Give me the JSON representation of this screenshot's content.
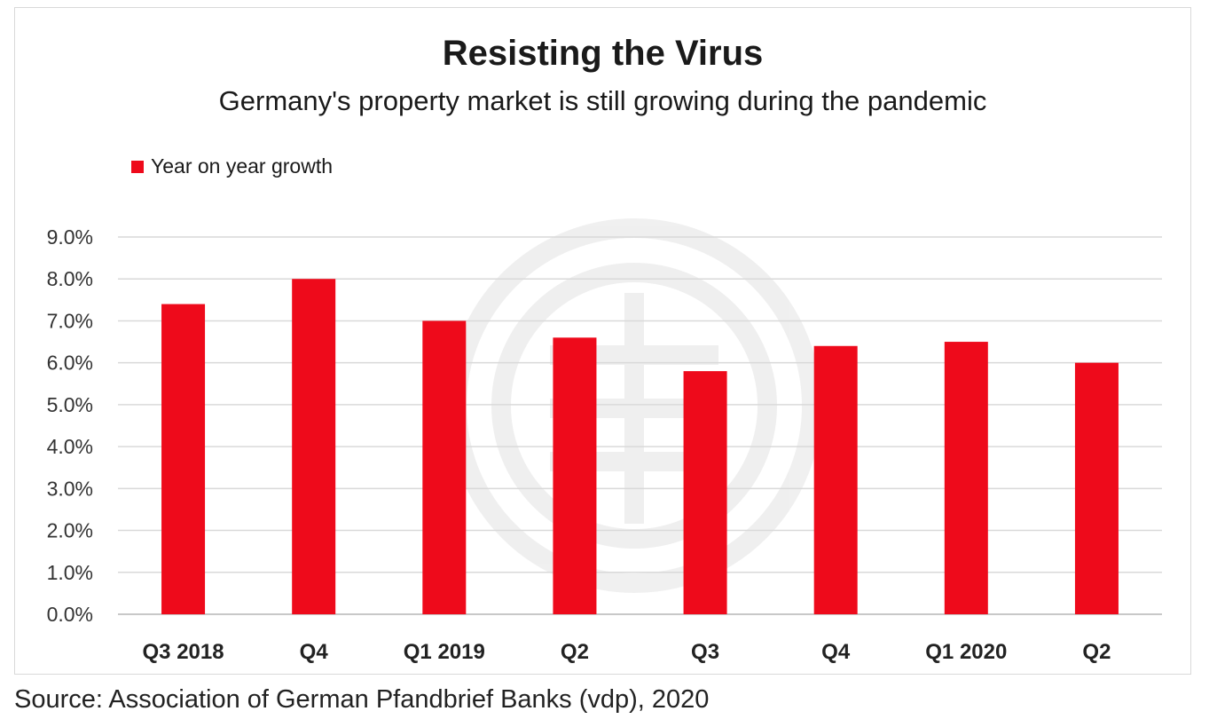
{
  "chart_data": {
    "type": "bar",
    "title": "Resisting the Virus",
    "subtitle": "Germany's property market is still growing during the pandemic",
    "categories": [
      "Q3 2018",
      "Q4",
      "Q1 2019",
      "Q2",
      "Q3",
      "Q4",
      "Q1 2020",
      "Q2"
    ],
    "series": [
      {
        "name": "Year on year growth",
        "values": [
          7.4,
          8.0,
          7.0,
          6.6,
          5.8,
          6.4,
          6.5,
          6.0
        ],
        "color": "#ee0a1b"
      }
    ],
    "ylim": [
      0,
      9
    ],
    "yticks": [
      "0.0%",
      "1.0%",
      "2.0%",
      "3.0%",
      "4.0%",
      "5.0%",
      "6.0%",
      "7.0%",
      "8.0%",
      "9.0%"
    ],
    "grid": true,
    "legend_position": "top-left",
    "gridline_color": "#d9d9d9"
  },
  "source": "Source: Association of German Pfandbrief Banks (vdp), 2020"
}
